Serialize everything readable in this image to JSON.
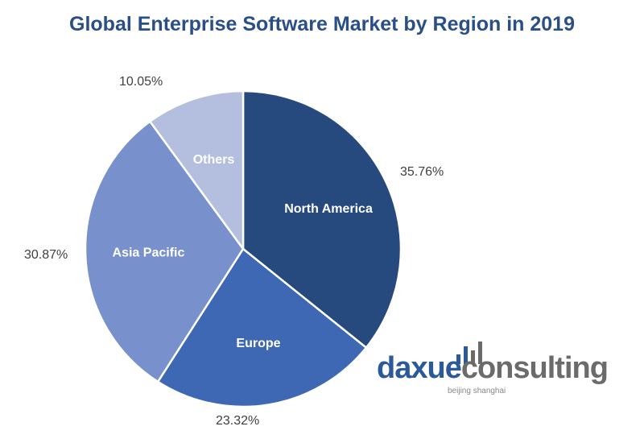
{
  "title": "Global Enterprise Software Market by Region in 2019",
  "chart_data": {
    "type": "pie",
    "title": "Global Enterprise Software Market by Region in 2019",
    "categories": [
      "North America",
      "Europe",
      "Asia Pacific",
      "Others"
    ],
    "values": [
      35.76,
      23.32,
      30.87,
      10.05
    ],
    "labels": [
      "35.76%",
      "23.32%",
      "30.87%",
      "10.05%"
    ],
    "colors": [
      "#264a7e",
      "#3e68b4",
      "#7890cc",
      "#b4bedf"
    ],
    "start_angle_deg": 0,
    "direction": "clockwise",
    "legend": "none (inline labels)"
  },
  "percent_labels": {
    "north_america": "35.76%",
    "europe": "23.32%",
    "asia_pacific": "30.87%",
    "others": "10.05%"
  },
  "slice_labels": {
    "north_america": "North America",
    "europe": "Europe",
    "asia_pacific": "Asia Pacific",
    "others": "Others"
  },
  "logo": {
    "part1": "daxue",
    "part2": "consulting",
    "tagline": "beijing shanghai"
  }
}
